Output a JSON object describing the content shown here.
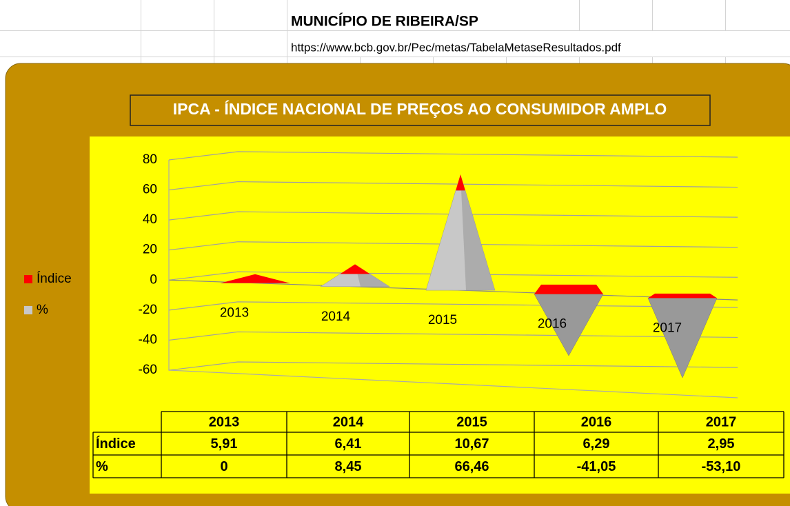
{
  "sheet": {
    "title": "MUNICÍPIO DE RIBEIRA/SP",
    "url": "https://www.bcb.gov.br/Pec/metas/TabelaMetaseResultados.pdf"
  },
  "chart_data": {
    "type": "pyramid3d",
    "title": "IPCA - ÍNDICE NACIONAL DE PREÇOS AO CONSUMIDOR AMPLO",
    "categories": [
      "2013",
      "2014",
      "2015",
      "2016",
      "2017"
    ],
    "series": [
      {
        "name": "Índice",
        "color": "#ff0000",
        "values": [
          5.91,
          6.41,
          10.67,
          6.29,
          2.95
        ],
        "value_labels": [
          "5,91",
          "6,41",
          "10,67",
          "6,29",
          "2,95"
        ]
      },
      {
        "name": "%",
        "color": "#c8c8c8",
        "values": [
          0,
          8.45,
          66.46,
          -41.05,
          -53.1
        ],
        "value_labels": [
          "0",
          "8,45",
          "66,46",
          "-41,05",
          "-53,10"
        ]
      }
    ],
    "ylim": [
      -60,
      80
    ],
    "yticks": [
      -60,
      -40,
      -20,
      0,
      20,
      40,
      60,
      80
    ],
    "grid": true,
    "legend": "left"
  }
}
